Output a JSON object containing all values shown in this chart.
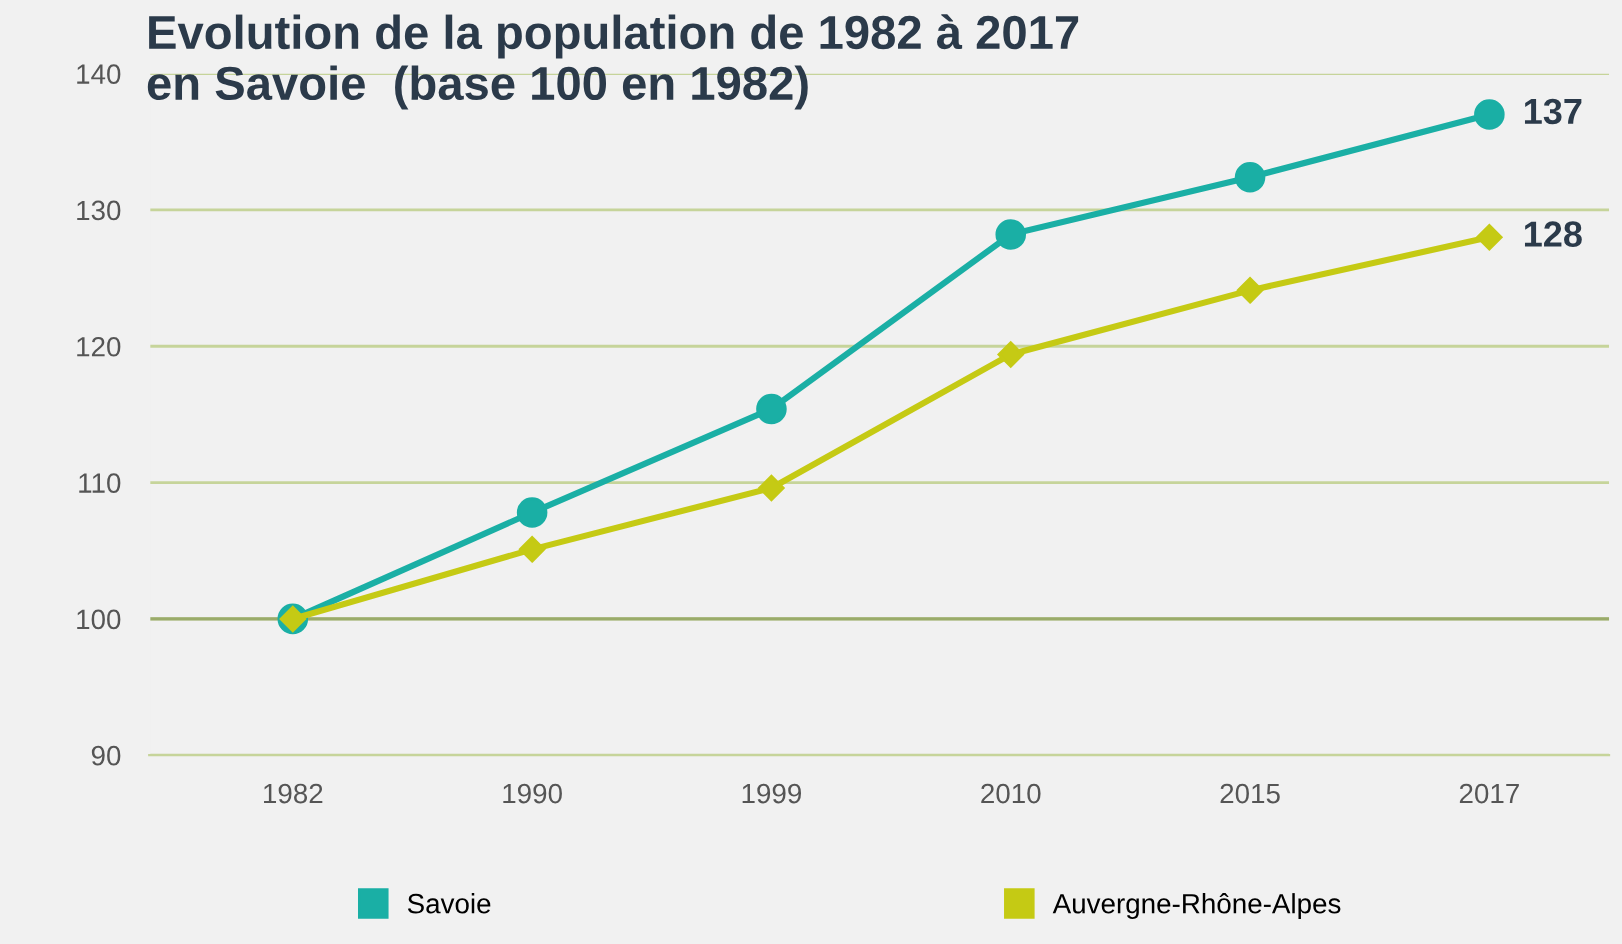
{
  "chart_data": {
    "type": "line",
    "title": "Evolution de la population de 1982 à 2017\nen Savoie  (base 100 en 1982)",
    "categories": [
      "1982",
      "1990",
      "1999",
      "2010",
      "2015",
      "2017"
    ],
    "series": [
      {
        "name": "Savoie",
        "color": "#1aafa5",
        "marker": "circle",
        "values": [
          100,
          107.8,
          115.4,
          128.2,
          132.4,
          137
        ],
        "value_labels": [
          null,
          null,
          null,
          null,
          null,
          "137"
        ]
      },
      {
        "name": "Auvergne-Rhône-Alpes",
        "color": "#c5ca14",
        "marker": "diamond",
        "values": [
          100,
          105.1,
          109.6,
          119.4,
          124.1,
          128
        ],
        "value_labels": [
          null,
          null,
          null,
          null,
          null,
          "128"
        ]
      }
    ],
    "ylim": [
      90,
      140
    ],
    "yticks": [
      90,
      100,
      110,
      120,
      130,
      140
    ],
    "grid": "y",
    "legend": "bottom",
    "ref_lines": [
      {
        "axis": "y",
        "value": 100,
        "color": "#9aab6a"
      }
    ]
  }
}
